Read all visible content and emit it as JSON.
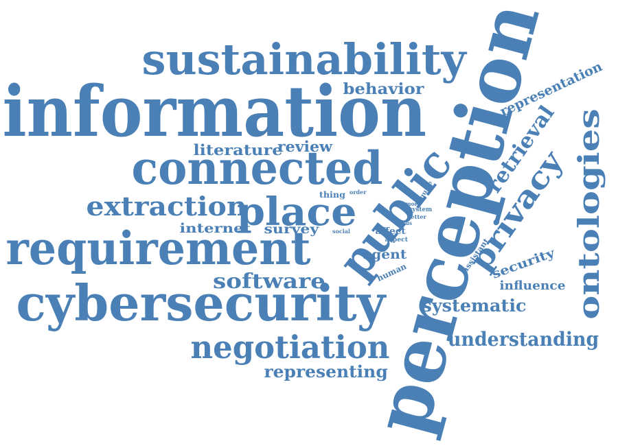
{
  "colors": {
    "text": "#4a80b5",
    "background": "#ffffff"
  },
  "words": {
    "perception": "perception",
    "information": "information",
    "sustainability": "sustainability",
    "connected": "connected",
    "requirement": "requirement",
    "cybersecurity": "cybersecurity",
    "public": "public",
    "place": "place",
    "extraction": "extraction",
    "ontologies": "ontologies",
    "privacy": "privacy",
    "negotiation": "negotiation",
    "retrieval": "retrieval",
    "understanding": "understanding",
    "software": "software",
    "systematic": "systematic",
    "representing": "representing",
    "representation": "representation",
    "literature": "literature",
    "review": "review",
    "behavior": "behavior",
    "internet": "internet",
    "survey": "survey",
    "agent": "agent",
    "security": "security",
    "influence": "influence",
    "human": "human",
    "assistant": "assistant",
    "thing": "thing",
    "order": "order",
    "require": "require",
    "more": "more",
    "system": "system",
    "better": "better",
    "focus": "focus",
    "affect": "affect",
    "aspect": "aspect",
    "social": "social"
  }
}
